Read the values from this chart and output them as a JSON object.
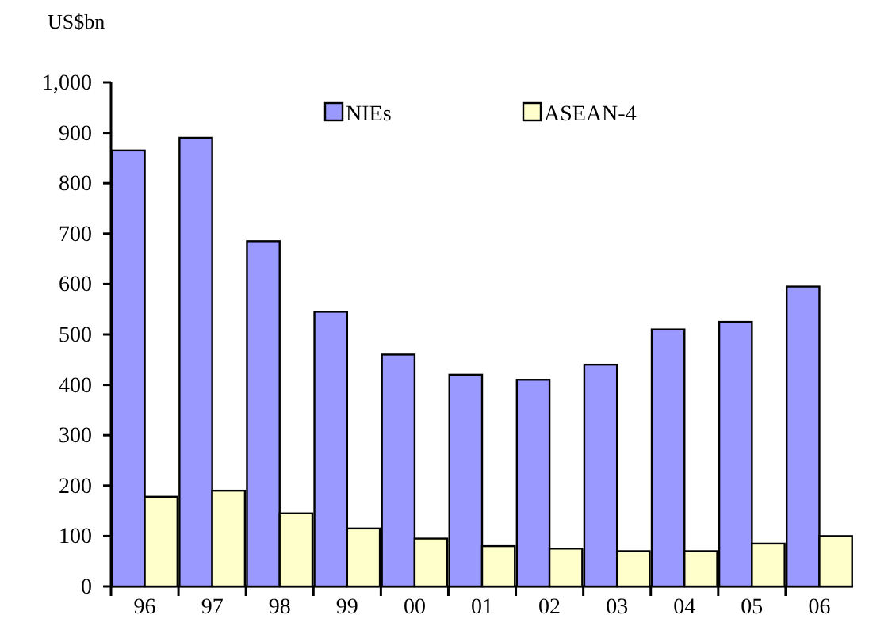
{
  "chart_data": {
    "type": "bar",
    "ylabel": "US$bn",
    "categories": [
      "96",
      "97",
      "98",
      "99",
      "00",
      "01",
      "02",
      "03",
      "04",
      "05",
      "06"
    ],
    "series": [
      {
        "name": "NIEs",
        "color": "#9999ff",
        "values": [
          865,
          890,
          685,
          545,
          460,
          420,
          410,
          440,
          510,
          525,
          595
        ]
      },
      {
        "name": "ASEAN-4",
        "color": "#ffffcc",
        "values": [
          178,
          190,
          145,
          115,
          95,
          80,
          75,
          70,
          70,
          85,
          100
        ]
      }
    ],
    "ylim": [
      0,
      1000
    ],
    "yticks": [
      0,
      100,
      200,
      300,
      400,
      500,
      600,
      700,
      800,
      900,
      {
        "value": 1000,
        "label": "1,000"
      }
    ],
    "grid": false,
    "legend": "top"
  }
}
